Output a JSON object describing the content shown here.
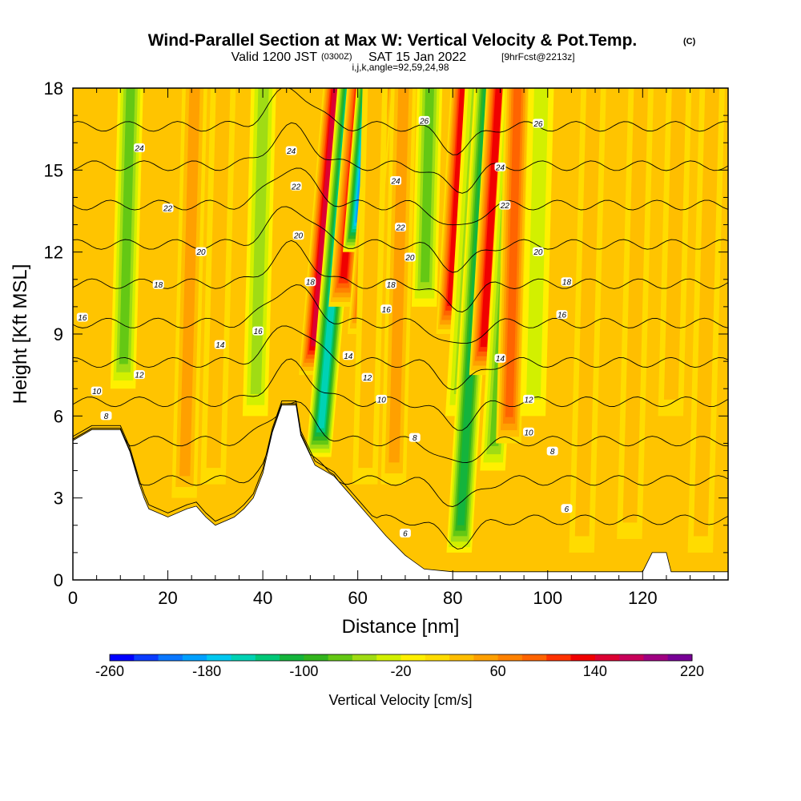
{
  "header": {
    "title": "Wind-Parallel Section at Max W: Vertical Velocity & Pot.Temp.",
    "title_mark": "(C)",
    "valid_a": "Valid 1200 JST",
    "valid_b": "(0300Z)",
    "valid_c": "SAT 15 Jan 2022",
    "valid_d": "[9hrFcst@2213z]",
    "indices": "i,j,k,angle=92,59,24,98"
  },
  "chart_data": {
    "type": "contour",
    "xlabel": "Distance [nm]",
    "ylabel": "Height [Kft MSL]",
    "xlim": [
      0,
      138
    ],
    "ylim": [
      0,
      18
    ],
    "xticks": [
      0,
      20,
      40,
      60,
      80,
      100,
      120
    ],
    "xtick_labels": [
      "0",
      "20",
      "40",
      "60",
      "80",
      "100",
      "120"
    ],
    "yticks": [
      0,
      3,
      6,
      9,
      12,
      15,
      18
    ],
    "ytick_labels": [
      "0",
      "3",
      "6",
      "9",
      "12",
      "15",
      "18"
    ],
    "colorbar": {
      "title": "Vertical Velocity [cm/s]",
      "levels": [
        -260,
        -240,
        -220,
        -200,
        -180,
        -160,
        -140,
        -120,
        -100,
        -80,
        -60,
        -40,
        -20,
        0,
        20,
        40,
        60,
        80,
        100,
        120,
        140,
        160,
        180,
        200,
        220
      ],
      "label_values": [
        -260,
        -180,
        -100,
        -20,
        60,
        140,
        220
      ],
      "labels": [
        "-260",
        "-180",
        "-100",
        "-20",
        "60",
        "140",
        "220"
      ],
      "colors": [
        "#0000ff",
        "#0a3cff",
        "#0a78ff",
        "#00a0ff",
        "#00c8f0",
        "#00d2b4",
        "#00c878",
        "#14b43c",
        "#32b41e",
        "#64c814",
        "#a0dc14",
        "#d2f000",
        "#fff000",
        "#ffdc00",
        "#ffbe00",
        "#ffa000",
        "#ff8200",
        "#ff6400",
        "#ff3200",
        "#f00000",
        "#dc0032",
        "#c8005a",
        "#a00082",
        "#780096"
      ]
    },
    "terrain": [
      [
        0,
        5.1
      ],
      [
        4,
        5.5
      ],
      [
        10,
        5.5
      ],
      [
        12,
        4.7
      ],
      [
        14,
        3.5
      ],
      [
        15,
        3.0
      ],
      [
        16,
        2.6
      ],
      [
        20,
        2.3
      ],
      [
        24,
        2.6
      ],
      [
        26,
        2.7
      ],
      [
        28,
        2.3
      ],
      [
        30,
        2.0
      ],
      [
        34,
        2.3
      ],
      [
        36,
        2.6
      ],
      [
        38,
        3.0
      ],
      [
        40,
        3.9
      ],
      [
        42,
        5.4
      ],
      [
        44,
        6.4
      ],
      [
        47,
        6.4
      ],
      [
        48,
        5.3
      ],
      [
        51,
        4.2
      ],
      [
        55,
        3.8
      ],
      [
        58,
        3.2
      ],
      [
        62,
        2.4
      ],
      [
        66,
        1.6
      ],
      [
        70,
        0.9
      ],
      [
        74,
        0.4
      ],
      [
        80,
        0.3
      ],
      [
        90,
        0.3
      ],
      [
        120,
        0.3
      ],
      [
        122,
        1.0
      ],
      [
        125,
        1.0
      ],
      [
        126,
        0.3
      ],
      [
        138,
        0.3
      ]
    ],
    "velocity_columns": [
      {
        "x": 9.5,
        "w": -80,
        "ybot": 7.0
      },
      {
        "x": 23.0,
        "w": 50,
        "ybot": 3.0
      },
      {
        "x": 29.0,
        "w": 40,
        "ybot": 3.5
      },
      {
        "x": 37.5,
        "w": -60,
        "ybot": 6.0
      },
      {
        "x": 46.5,
        "w": 160,
        "ybot": 7.5
      },
      {
        "x": 49.5,
        "w": -160,
        "ybot": 4.5
      },
      {
        "x": 51.5,
        "w": 130,
        "ybot": 10.0
      },
      {
        "x": 53.5,
        "w": -200,
        "ybot": 12.0
      },
      {
        "x": 56.0,
        "w": 110,
        "ybot": 9.0
      },
      {
        "x": 61.0,
        "w": 40,
        "ybot": 3.5
      },
      {
        "x": 67.0,
        "w": 50,
        "ybot": 3.5
      },
      {
        "x": 72.5,
        "w": -80,
        "ybot": 10.0
      },
      {
        "x": 76.0,
        "w": 140,
        "ybot": 9.0
      },
      {
        "x": 79.0,
        "w": -60,
        "ybot": 6.0
      },
      {
        "x": 81.0,
        "w": -120,
        "ybot": 1.0
      },
      {
        "x": 83.5,
        "w": 130,
        "ybot": 7.5
      },
      {
        "x": 87.0,
        "w": -80,
        "ybot": 4.0
      },
      {
        "x": 91.0,
        "w": 90,
        "ybot": 5.0
      },
      {
        "x": 96.0,
        "w": -40,
        "ybot": 6.0
      },
      {
        "x": 107.0,
        "w": 40,
        "ybot": 1.0
      },
      {
        "x": 117.0,
        "w": 30,
        "ybot": 1.5
      },
      {
        "x": 125.0,
        "w": 30,
        "ybot": 6.0
      },
      {
        "x": 132.0,
        "w": 40,
        "ybot": 1.0
      }
    ],
    "theta_levels": [
      6,
      8,
      10,
      12,
      14,
      16,
      18,
      20,
      22,
      24,
      26
    ],
    "contour_labels": [
      {
        "text": "24",
        "x": 14,
        "y": 15.8
      },
      {
        "text": "22",
        "x": 20,
        "y": 13.6
      },
      {
        "text": "20",
        "x": 27,
        "y": 12.0
      },
      {
        "text": "18",
        "x": 18,
        "y": 10.8
      },
      {
        "text": "16",
        "x": 2,
        "y": 9.6
      },
      {
        "text": "16",
        "x": 39,
        "y": 9.1
      },
      {
        "text": "14",
        "x": 31,
        "y": 8.6
      },
      {
        "text": "12",
        "x": 14,
        "y": 7.5
      },
      {
        "text": "10",
        "x": 5,
        "y": 6.9
      },
      {
        "text": "8",
        "x": 7,
        "y": 6.0
      },
      {
        "text": "24",
        "x": 46,
        "y": 15.7
      },
      {
        "text": "22",
        "x": 47,
        "y": 14.4
      },
      {
        "text": "20",
        "x": 47.5,
        "y": 12.6
      },
      {
        "text": "18",
        "x": 50,
        "y": 10.9
      },
      {
        "text": "24",
        "x": 68,
        "y": 14.6
      },
      {
        "text": "22",
        "x": 69,
        "y": 12.9
      },
      {
        "text": "20",
        "x": 71,
        "y": 11.8
      },
      {
        "text": "18",
        "x": 67,
        "y": 10.8
      },
      {
        "text": "16",
        "x": 66,
        "y": 9.9
      },
      {
        "text": "14",
        "x": 58,
        "y": 8.2
      },
      {
        "text": "12",
        "x": 62,
        "y": 7.4
      },
      {
        "text": "10",
        "x": 65,
        "y": 6.6
      },
      {
        "text": "8",
        "x": 72,
        "y": 5.2
      },
      {
        "text": "6",
        "x": 70,
        "y": 1.7
      },
      {
        "text": "26",
        "x": 74,
        "y": 16.8
      },
      {
        "text": "26",
        "x": 98,
        "y": 16.7
      },
      {
        "text": "24",
        "x": 90,
        "y": 15.1
      },
      {
        "text": "22",
        "x": 91,
        "y": 13.7
      },
      {
        "text": "20",
        "x": 98,
        "y": 12.0
      },
      {
        "text": "18",
        "x": 104,
        "y": 10.9
      },
      {
        "text": "16",
        "x": 103,
        "y": 9.7
      },
      {
        "text": "14",
        "x": 90,
        "y": 8.1
      },
      {
        "text": "12",
        "x": 96,
        "y": 6.6
      },
      {
        "text": "10",
        "x": 96,
        "y": 5.4
      },
      {
        "text": "8",
        "x": 101,
        "y": 4.7
      },
      {
        "text": "6",
        "x": 104,
        "y": 2.6
      }
    ]
  }
}
